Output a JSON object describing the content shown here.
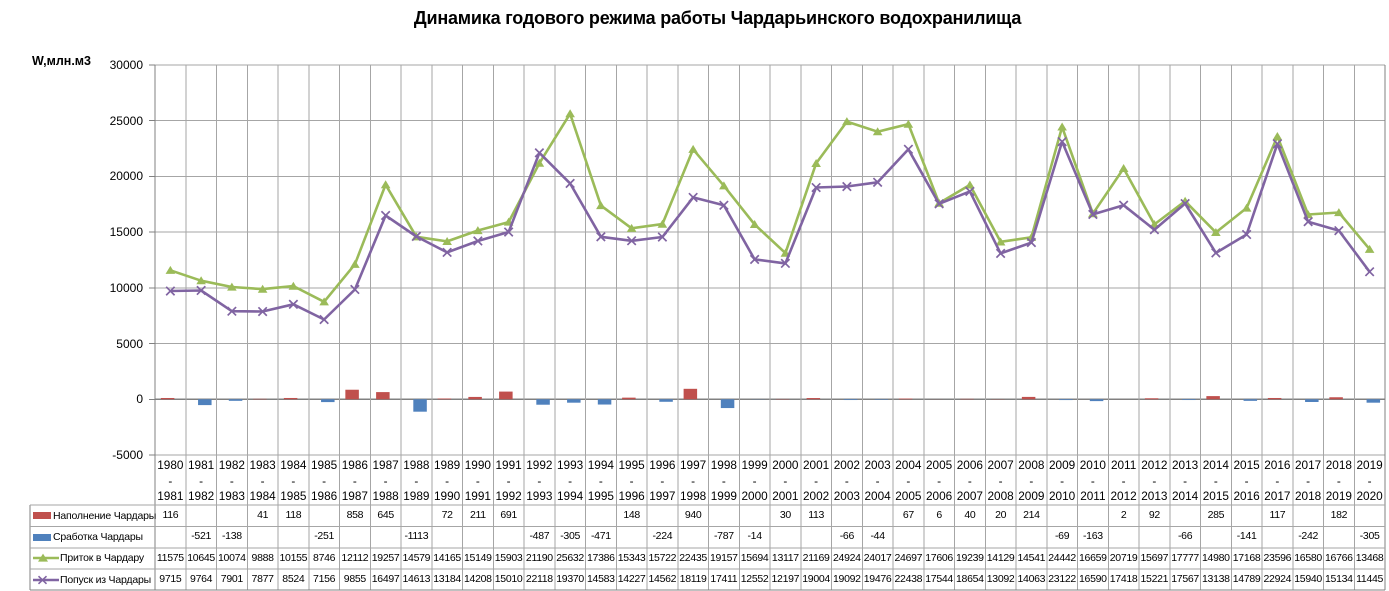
{
  "colors": {
    "napolnenie": "#C0504D",
    "srabotka": "#4F81BD",
    "pritok": "#9BBB59",
    "popusk": "#8064A2",
    "grid": "#A6A6A6",
    "axis": "#808080",
    "text": "#000000",
    "background": "#FFFFFF"
  },
  "chart_data": {
    "type": "combo",
    "title": "Динамика годового режима работы Чардарьинского водохранилища",
    "ylabel": "W,млн.м3",
    "xlabel": "",
    "ylim": [
      -5000,
      30000
    ],
    "ytick_step": 5000,
    "grid": true,
    "legend_position": "table-left",
    "categories": [
      "1980-1981",
      "1981-1982",
      "1982-1983",
      "1983-1984",
      "1984-1985",
      "1985-1986",
      "1986-1987",
      "1987-1988",
      "1988-1989",
      "1989-1990",
      "1990-1991",
      "1991-1992",
      "1992-1993",
      "1993-1994",
      "1994-1995",
      "1995-1996",
      "1996-1997",
      "1997-1998",
      "1998-1999",
      "1999-2000",
      "2000-2001",
      "2001-2002",
      "2002-2003",
      "2003-2004",
      "2004-2005",
      "2005-2006",
      "2006-2007",
      "2007-2008",
      "2008-2009",
      "2009-2010",
      "2010-2011",
      "2011-2012",
      "2012-2013",
      "2013-2014",
      "2014-2015",
      "2015-2016",
      "2016-2017",
      "2017-2018",
      "2018-2019",
      "2019-2020"
    ],
    "series": [
      {
        "name": "Наполнение Чардары",
        "type": "bar",
        "color": "#C0504D",
        "values": [
          116,
          null,
          null,
          41,
          118,
          null,
          858,
          645,
          null,
          72,
          211,
          691,
          null,
          null,
          null,
          148,
          null,
          940,
          null,
          null,
          30,
          113,
          null,
          null,
          67,
          6,
          40,
          20,
          214,
          null,
          null,
          2,
          92,
          null,
          285,
          null,
          117,
          null,
          182,
          null
        ]
      },
      {
        "name": "Сработка Чардары",
        "type": "bar",
        "color": "#4F81BD",
        "values": [
          null,
          -521,
          -138,
          null,
          null,
          -251,
          null,
          null,
          -1113,
          null,
          null,
          null,
          -487,
          -305,
          -471,
          null,
          -224,
          null,
          -787,
          -14,
          null,
          null,
          -66,
          -44,
          null,
          null,
          null,
          null,
          null,
          -69,
          -163,
          null,
          null,
          -66,
          null,
          -141,
          null,
          -242,
          null,
          -305
        ]
      },
      {
        "name": "Приток в Чардару",
        "type": "line",
        "marker": "triangle",
        "color": "#9BBB59",
        "values": [
          11575,
          10645,
          10074,
          9888,
          10155,
          8746,
          12112,
          19257,
          14579,
          14165,
          15149,
          15903,
          21190,
          25632,
          17386,
          15343,
          15722,
          22435,
          19157,
          15694,
          13117,
          21169,
          24924,
          24017,
          24697,
          17606,
          19239,
          14129,
          14541,
          24442,
          16659,
          20719,
          15697,
          17777,
          14980,
          17168,
          23596,
          16580,
          16766,
          13468
        ]
      },
      {
        "name": "Попуск из Чардары",
        "type": "line",
        "marker": "x",
        "color": "#8064A2",
        "values": [
          9715,
          9764,
          7901,
          7877,
          8524,
          7156,
          9855,
          16497,
          14613,
          13184,
          14208,
          15010,
          22118,
          19370,
          14583,
          14227,
          14562,
          18119,
          17411,
          12552,
          12197,
          19004,
          19092,
          19476,
          22438,
          17544,
          18654,
          13092,
          14063,
          23122,
          16590,
          17418,
          15221,
          17567,
          13138,
          14789,
          22924,
          15940,
          15134,
          11445
        ]
      }
    ]
  }
}
